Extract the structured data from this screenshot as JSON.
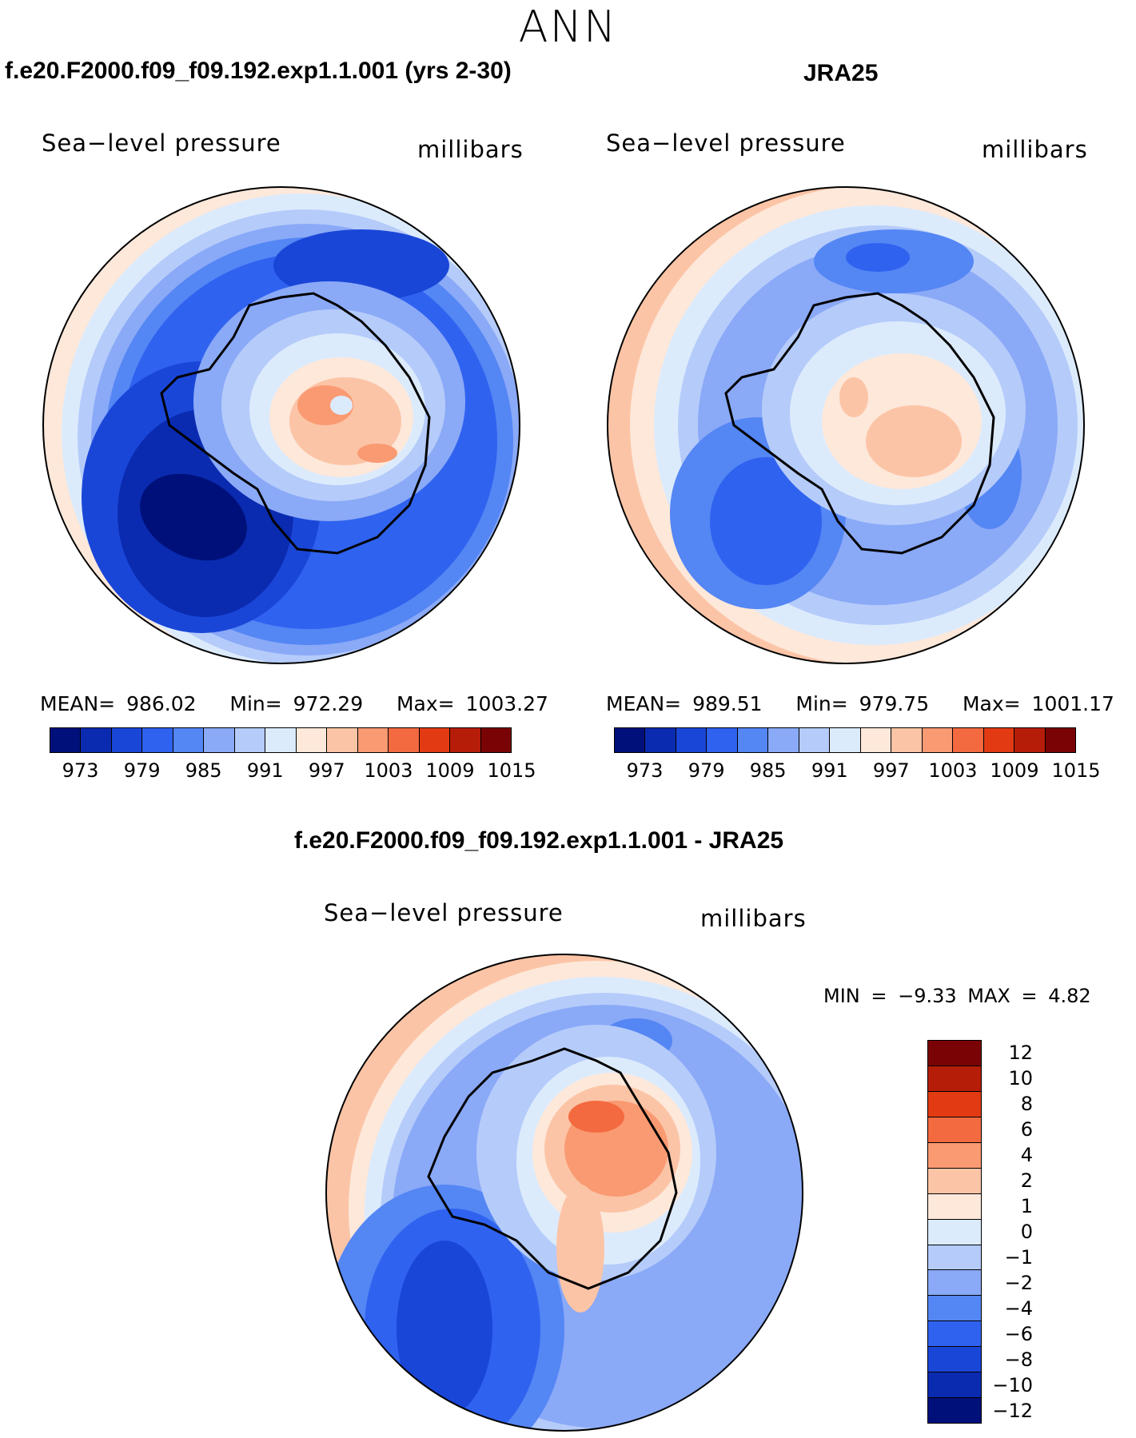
{
  "season": "ANN",
  "panels": [
    {
      "title": "f.e20.F2000.f09_f09.192.exp1.1.001 (yrs 2-30)",
      "left_label": "Sea−level pressure",
      "right_label": "millibars",
      "stats": {
        "mean": "MEAN= 986.02",
        "min": "Min= 972.29",
        "max": "Max= 1003.27"
      }
    },
    {
      "title": "JRA25",
      "left_label": "Sea−level pressure",
      "right_label": "millibars",
      "stats": {
        "mean": "MEAN= 989.51",
        "min": "Min= 979.75",
        "max": "Max= 1001.17"
      }
    }
  ],
  "abs_colorbar": {
    "colors": [
      "#00107a",
      "#0a2bb0",
      "#1a46d8",
      "#2f62ef",
      "#5486f4",
      "#8aa9f7",
      "#b5cbfa",
      "#dcebfc",
      "#fde8da",
      "#fcc4a6",
      "#f99a72",
      "#f46a40",
      "#e23b14",
      "#b61d08",
      "#7a0405"
    ],
    "tick_labels": [
      "973",
      "979",
      "985",
      "991",
      "997",
      "1003",
      "1009",
      "1015"
    ]
  },
  "diff_panel": {
    "title": "f.e20.F2000.f09_f09.192.exp1.1.001 - JRA25",
    "left_label": "Sea−level pressure",
    "right_label": "millibars",
    "minmax": "MIN =   −9.33  MAX =     4.82"
  },
  "diff_colorbar": {
    "colors": [
      "#7a0405",
      "#b61d08",
      "#e23b14",
      "#f46a40",
      "#f99a72",
      "#fcc4a6",
      "#fde8da",
      "#dcebfc",
      "#b5cbfa",
      "#8aa9f7",
      "#5486f4",
      "#2f62ef",
      "#1a46d8",
      "#0a2bb0",
      "#00107a"
    ],
    "tick_labels": [
      "12",
      "10",
      "8",
      "6",
      "4",
      "2",
      "1",
      "0",
      "−1",
      "−2",
      "−4",
      "−6",
      "−8",
      "−10",
      "−12"
    ]
  },
  "chart_data": [
    {
      "type": "heatmap",
      "title": "f.e20.F2000.f09_f09.192.exp1.1.001 (yrs 2-30)",
      "variable": "Sea−level pressure",
      "units": "millibars",
      "mean": 986.02,
      "min": 972.29,
      "max": 1003.27,
      "contour_levels": [
        973,
        979,
        985,
        991,
        997,
        1003,
        1009,
        1015
      ]
    },
    {
      "type": "heatmap",
      "title": "JRA25",
      "variable": "Sea−level pressure",
      "units": "millibars",
      "mean": 989.51,
      "min": 979.75,
      "max": 1001.17,
      "contour_levels": [
        973,
        979,
        985,
        991,
        997,
        1003,
        1009,
        1015
      ]
    },
    {
      "type": "heatmap",
      "title": "f.e20.F2000.f09_f09.192.exp1.1.001 - JRA25",
      "variable": "Sea−level pressure",
      "units": "millibars",
      "min": -9.33,
      "max": 4.82,
      "contour_levels": [
        -12,
        -10,
        -8,
        -6,
        -4,
        -2,
        -1,
        0,
        1,
        2,
        4,
        6,
        8,
        10,
        12
      ]
    }
  ]
}
